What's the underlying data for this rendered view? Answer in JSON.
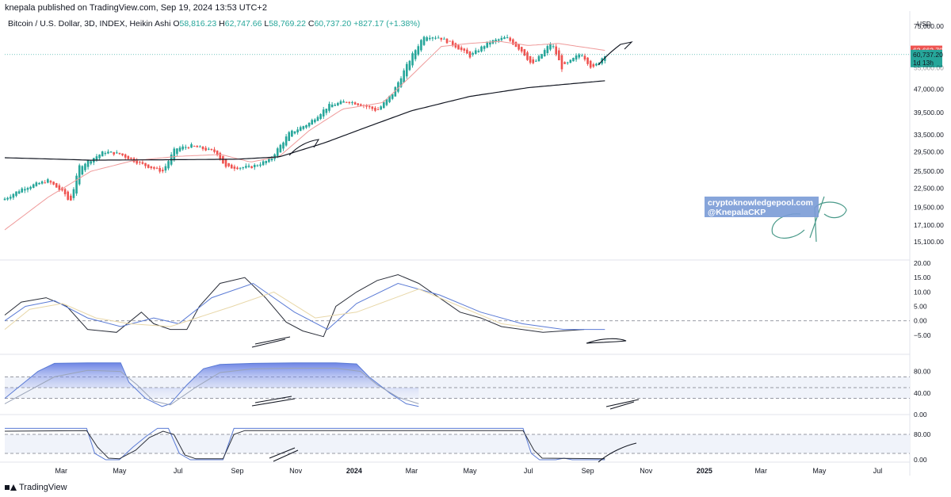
{
  "header": {
    "text": "knepala published on TradingView.com, Sep 19, 2024 13:53 UTC+2"
  },
  "legend": {
    "symbol": "Bitcoin / U.S. Dollar, 3D, INDEX, Heikin Ashi",
    "open_label": "O",
    "open": "58,816.23",
    "high_label": "H",
    "high": "62,747.66",
    "low_label": "L",
    "low": "58,769.22",
    "close_label": "C",
    "close": "60,737.20",
    "change": "+827.17 (+1.38%)"
  },
  "currency_label": "USD",
  "price_tags": {
    "ma_value": "62,662.70",
    "last_price": "60,737.20",
    "countdown": "1d 13h",
    "hidden_tick": "55,000.00"
  },
  "watermark": {
    "line1": "cryptoknowledgepool.com",
    "line2": "@KnepalaCKP"
  },
  "footer": {
    "brand": "TradingView"
  },
  "colors": {
    "up": "#26a69a",
    "down": "#ef5350",
    "ma_fast": "#ef9a9a",
    "ma_slow": "#131722",
    "osc_fast": "#2a2e39",
    "osc_slow": "#5b7bd5",
    "osc_signal": "#e8d7a8",
    "tag_teal": "#26a69a",
    "tag_red": "#ef5350",
    "watermark_bg": "#7a9bd6"
  },
  "chart_data": [
    {
      "type": "candlestick",
      "title": "",
      "scale": "log",
      "ylim": [
        13500,
        81000
      ],
      "y_ticks": [
        "75,000.00",
        "62,662.70",
        "47,000.00",
        "39,500.00",
        "33,500.00",
        "29,500.00",
        "25,500.00",
        "22,500.00",
        "19,500.00",
        "17,100.00",
        "15,100.00"
      ],
      "x_ticks": [
        "Mar",
        "May",
        "Jul",
        "Sep",
        "Nov",
        "2024",
        "Mar",
        "May",
        "Jul",
        "Sep",
        "Nov",
        "2025",
        "Mar",
        "May",
        "Jul"
      ],
      "close_anchors": [
        [
          "2023-01-01",
          20800
        ],
        [
          "2023-01-20",
          22500
        ],
        [
          "2023-02-15",
          23800
        ],
        [
          "2023-03-05",
          21500
        ],
        [
          "2023-03-10",
          20100
        ],
        [
          "2023-03-20",
          26500
        ],
        [
          "2023-04-15",
          29500
        ],
        [
          "2023-05-01",
          29000
        ],
        [
          "2023-05-25",
          26800
        ],
        [
          "2023-06-15",
          25500
        ],
        [
          "2023-06-28",
          30200
        ],
        [
          "2023-07-15",
          30800
        ],
        [
          "2023-08-10",
          29400
        ],
        [
          "2023-08-20",
          26200
        ],
        [
          "2023-09-15",
          26300
        ],
        [
          "2023-10-05",
          27800
        ],
        [
          "2023-10-25",
          33800
        ],
        [
          "2023-11-15",
          36500
        ],
        [
          "2023-12-05",
          41500
        ],
        [
          "2023-12-25",
          43000
        ],
        [
          "2024-01-12",
          41500
        ],
        [
          "2024-01-25",
          40000
        ],
        [
          "2024-02-10",
          45500
        ],
        [
          "2024-03-01",
          60000
        ],
        [
          "2024-03-14",
          70000
        ],
        [
          "2024-03-30",
          69000
        ],
        [
          "2024-04-15",
          65000
        ],
        [
          "2024-05-01",
          60000
        ],
        [
          "2024-05-20",
          66500
        ],
        [
          "2024-06-08",
          69000
        ],
        [
          "2024-06-25",
          62000
        ],
        [
          "2024-07-05",
          56000
        ],
        [
          "2024-07-25",
          66500
        ],
        [
          "2024-08-05",
          55000
        ],
        [
          "2024-08-25",
          61500
        ],
        [
          "2024-09-06",
          54500
        ],
        [
          "2024-09-19",
          60737
        ]
      ],
      "ma_fast": [
        [
          "2023-01-01",
          16500
        ],
        [
          "2023-02-15",
          21000
        ],
        [
          "2023-04-01",
          25500
        ],
        [
          "2023-05-15",
          27600
        ],
        [
          "2023-07-01",
          28500
        ],
        [
          "2023-08-15",
          28900
        ],
        [
          "2023-09-15",
          27300
        ],
        [
          "2023-10-15",
          28500
        ],
        [
          "2023-11-15",
          34500
        ],
        [
          "2023-12-20",
          40500
        ],
        [
          "2024-01-31",
          42500
        ],
        [
          "2024-03-01",
          52000
        ],
        [
          "2024-04-01",
          64500
        ],
        [
          "2024-05-01",
          66000
        ],
        [
          "2024-06-01",
          67000
        ],
        [
          "2024-07-01",
          65000
        ],
        [
          "2024-08-01",
          66000
        ],
        [
          "2024-09-19",
          62662
        ]
      ],
      "ma_slow": [
        [
          "2023-01-01",
          28200
        ],
        [
          "2023-04-01",
          27700
        ],
        [
          "2023-07-01",
          27800
        ],
        [
          "2023-09-01",
          27900
        ],
        [
          "2023-10-15",
          28400
        ],
        [
          "2023-12-01",
          31500
        ],
        [
          "2024-01-15",
          35500
        ],
        [
          "2024-03-01",
          40000
        ],
        [
          "2024-05-01",
          44500
        ],
        [
          "2024-07-01",
          47500
        ],
        [
          "2024-09-19",
          50000
        ]
      ]
    },
    {
      "type": "line",
      "title": "",
      "ylim": [
        -7.5,
        20
      ],
      "y_ticks": [
        "20.00",
        "15.00",
        "10.00",
        "5.00",
        "0.00",
        "−5.00"
      ],
      "series": [
        {
          "values": [
            [
              0,
              2
            ],
            [
              0.04,
              6.5
            ],
            [
              0.1,
              8
            ],
            [
              0.15,
              5
            ],
            [
              0.2,
              -3
            ],
            [
              0.27,
              -4
            ],
            [
              0.33,
              3
            ],
            [
              0.36,
              -1
            ],
            [
              0.4,
              -3
            ],
            [
              0.44,
              -3
            ],
            [
              0.47,
              5
            ],
            [
              0.52,
              13
            ],
            [
              0.58,
              15
            ],
            [
              0.63,
              8
            ],
            [
              0.68,
              -0.5
            ],
            [
              0.72,
              -3.5
            ],
            [
              0.77,
              -5.5
            ],
            [
              0.8,
              5
            ],
            [
              0.85,
              10
            ],
            [
              0.9,
              14
            ],
            [
              0.95,
              16
            ],
            [
              1.0,
              13
            ],
            [
              1.05,
              8
            ],
            [
              1.1,
              3
            ],
            [
              1.15,
              1
            ],
            [
              1.2,
              -2
            ],
            [
              1.3,
              -4
            ],
            [
              1.4,
              -3
            ]
          ]
        },
        {
          "values": [
            [
              0,
              0
            ],
            [
              0.05,
              5
            ],
            [
              0.12,
              7
            ],
            [
              0.2,
              1
            ],
            [
              0.28,
              -2
            ],
            [
              0.36,
              1
            ],
            [
              0.42,
              -1
            ],
            [
              0.5,
              8
            ],
            [
              0.6,
              13
            ],
            [
              0.7,
              3
            ],
            [
              0.78,
              -3
            ],
            [
              0.85,
              6
            ],
            [
              0.95,
              13
            ],
            [
              1.05,
              9
            ],
            [
              1.15,
              3
            ],
            [
              1.25,
              -1
            ],
            [
              1.35,
              -3
            ],
            [
              1.45,
              -3
            ]
          ]
        },
        {
          "values": [
            [
              0,
              -3
            ],
            [
              0.06,
              4
            ],
            [
              0.14,
              6
            ],
            [
              0.22,
              1
            ],
            [
              0.3,
              -1
            ],
            [
              0.4,
              -2
            ],
            [
              0.55,
              5
            ],
            [
              0.65,
              10
            ],
            [
              0.75,
              1
            ],
            [
              0.85,
              3
            ],
            [
              1.0,
              11
            ],
            [
              1.1,
              5
            ],
            [
              1.2,
              -1
            ],
            [
              1.3,
              -3
            ]
          ]
        }
      ]
    },
    {
      "type": "line",
      "title": "",
      "ylim": [
        0,
        100
      ],
      "y_ticks": [
        "80.00",
        "40.00",
        "0.00"
      ],
      "series": [
        {
          "values": [
            [
              0,
              30
            ],
            [
              0.04,
              55
            ],
            [
              0.08,
              80
            ],
            [
              0.12,
              95
            ],
            [
              0.2,
              96
            ],
            [
              0.28,
              96
            ],
            [
              0.3,
              60
            ],
            [
              0.34,
              30
            ],
            [
              0.38,
              15
            ],
            [
              0.4,
              20
            ],
            [
              0.44,
              55
            ],
            [
              0.48,
              85
            ],
            [
              0.52,
              93
            ],
            [
              0.6,
              95
            ],
            [
              0.7,
              96
            ],
            [
              0.8,
              96
            ],
            [
              0.85,
              94
            ],
            [
              0.88,
              70
            ],
            [
              0.93,
              40
            ],
            [
              0.97,
              20
            ],
            [
              1.0,
              15
            ]
          ]
        },
        {
          "values": [
            [
              0,
              20
            ],
            [
              0.06,
              45
            ],
            [
              0.12,
              70
            ],
            [
              0.2,
              82
            ],
            [
              0.28,
              80
            ],
            [
              0.32,
              55
            ],
            [
              0.36,
              25
            ],
            [
              0.4,
              18
            ],
            [
              0.46,
              50
            ],
            [
              0.52,
              78
            ],
            [
              0.6,
              85
            ],
            [
              0.7,
              86
            ],
            [
              0.8,
              86
            ],
            [
              0.86,
              80
            ],
            [
              0.9,
              55
            ],
            [
              0.95,
              32
            ],
            [
              1.0,
              20
            ]
          ]
        }
      ]
    },
    {
      "type": "line",
      "title": "",
      "ylim": [
        0,
        100
      ],
      "y_ticks": [
        "80.00",
        "0.00"
      ],
      "series": [
        {
          "values": [
            [
              0,
              99
            ],
            [
              0.3,
              99
            ],
            [
              0.33,
              20
            ],
            [
              0.37,
              0
            ],
            [
              0.42,
              0
            ],
            [
              0.47,
              40
            ],
            [
              0.52,
              75
            ],
            [
              0.56,
              99
            ],
            [
              0.6,
              99
            ],
            [
              0.64,
              20
            ],
            [
              0.68,
              0
            ],
            [
              0.8,
              0
            ],
            [
              0.84,
              99
            ],
            [
              0.88,
              99
            ],
            [
              1.9,
              99
            ],
            [
              1.93,
              20
            ],
            [
              1.96,
              0
            ],
            [
              2.02,
              0
            ],
            [
              2.05,
              5
            ],
            [
              2.08,
              0
            ],
            [
              2.2,
              0
            ]
          ]
        },
        {
          "values": [
            [
              0,
              90
            ],
            [
              0.3,
              92
            ],
            [
              0.34,
              40
            ],
            [
              0.38,
              5
            ],
            [
              0.42,
              3
            ],
            [
              0.48,
              30
            ],
            [
              0.53,
              70
            ],
            [
              0.58,
              90
            ],
            [
              0.62,
              80
            ],
            [
              0.66,
              15
            ],
            [
              0.7,
              3
            ],
            [
              0.8,
              3
            ],
            [
              0.84,
              80
            ],
            [
              0.88,
              92
            ],
            [
              1.9,
              92
            ],
            [
              1.94,
              30
            ],
            [
              1.97,
              5
            ],
            [
              2.2,
              3
            ]
          ]
        }
      ]
    }
  ]
}
